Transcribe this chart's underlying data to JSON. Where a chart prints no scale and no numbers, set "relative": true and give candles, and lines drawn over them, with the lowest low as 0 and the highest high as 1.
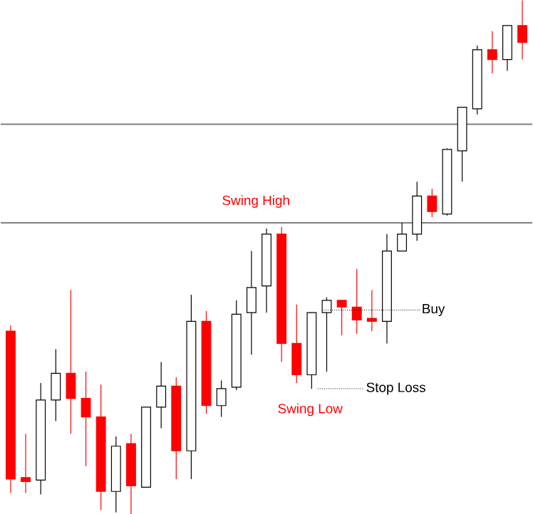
{
  "chart_data": {
    "type": "candlestick",
    "relative": true,
    "categories": [
      null,
      null,
      null,
      null,
      null,
      null,
      null,
      null,
      null,
      null,
      null,
      null,
      null,
      null,
      null,
      null,
      null,
      null,
      null,
      null,
      null,
      null,
      null,
      null,
      null,
      null,
      null,
      null,
      null,
      null,
      null,
      null,
      null,
      null,
      null
    ],
    "ohlc": [
      [
        0.356,
        0.367,
        0.041,
        0.068
      ],
      [
        0.071,
        0.156,
        0.041,
        0.063
      ],
      [
        0.066,
        0.255,
        0.038,
        0.222
      ],
      [
        0.222,
        0.321,
        0.181,
        0.274
      ],
      [
        0.274,
        0.436,
        0.156,
        0.225
      ],
      [
        0.225,
        0.277,
        0.093,
        0.189
      ],
      [
        0.189,
        0.252,
        0.008,
        0.044
      ],
      [
        0.044,
        0.151,
        0.003,
        0.132
      ],
      [
        0.137,
        0.156,
        0,
        0.055
      ],
      [
        0.052,
        0.208,
        0.052,
        0.208
      ],
      [
        0.208,
        0.296,
        0.167,
        0.249
      ],
      [
        0.249,
        0.266,
        0.068,
        0.123
      ],
      [
        0.123,
        0.427,
        0.068,
        0.375
      ],
      [
        0.375,
        0.395,
        0.195,
        0.211
      ],
      [
        0.211,
        0.26,
        0.189,
        0.244
      ],
      [
        0.247,
        0.416,
        0.241,
        0.389
      ],
      [
        0.392,
        0.512,
        0.31,
        0.441
      ],
      [
        0.444,
        0.556,
        0.392,
        0.545
      ],
      [
        0.545,
        0.559,
        0.296,
        0.332
      ],
      [
        0.332,
        0.408,
        0.255,
        0.271
      ],
      [
        0.271,
        0.392,
        0.244,
        0.392
      ],
      [
        0.392,
        0.422,
        0.277,
        0.416
      ],
      [
        0.416,
        0.416,
        0.348,
        0.403
      ],
      [
        0.403,
        0.477,
        0.351,
        0.378
      ],
      [
        0.381,
        0.436,
        0.356,
        0.375
      ],
      [
        0.375,
        0.545,
        0.332,
        0.512
      ],
      [
        0.512,
        0.567,
        0.512,
        0.545
      ],
      [
        0.545,
        0.647,
        0.532,
        0.619
      ],
      [
        0.619,
        0.633,
        0.578,
        0.589
      ],
      [
        0.584,
        0.712,
        0.581,
        0.71
      ],
      [
        0.707,
        0.792,
        0.647,
        0.792
      ],
      [
        0.789,
        0.912,
        0.778,
        0.904
      ],
      [
        0.904,
        0.94,
        0.858,
        0.885
      ],
      [
        0.885,
        0.951,
        0.863,
        0.951
      ],
      [
        0.951,
        1,
        0.885,
        0.918
      ]
    ],
    "colors": [
      "#ff0000",
      "#ff0000",
      "#ffffff",
      "#ffffff",
      "#ff0000",
      "#ff0000",
      "#ff0000",
      "#ffffff",
      "#ff0000",
      "#ffffff",
      "#ffffff",
      "#ff0000",
      "#ffffff",
      "#ff0000",
      "#ffffff",
      "#ffffff",
      "#ffffff",
      "#ffffff",
      "#ff0000",
      "#ff0000",
      "#ffffff",
      "#ffffff",
      "#ff0000",
      "#ff0000",
      "#ff0000",
      "#ffffff",
      "#ffffff",
      "#ffffff",
      "#ff0000",
      "#ffffff",
      "#ffffff",
      "#ffffff",
      "#ff0000",
      "#ffffff",
      "#ff0000"
    ],
    "ref_lines": [
      {
        "axis": "y",
        "value": 0.759,
        "color": "#808080"
      },
      {
        "axis": "y",
        "value": 0.567,
        "label": "Swing High",
        "color": "#808080"
      }
    ],
    "annotations": [
      "Swing Low",
      "Buy",
      "Stop Loss"
    ]
  }
}
